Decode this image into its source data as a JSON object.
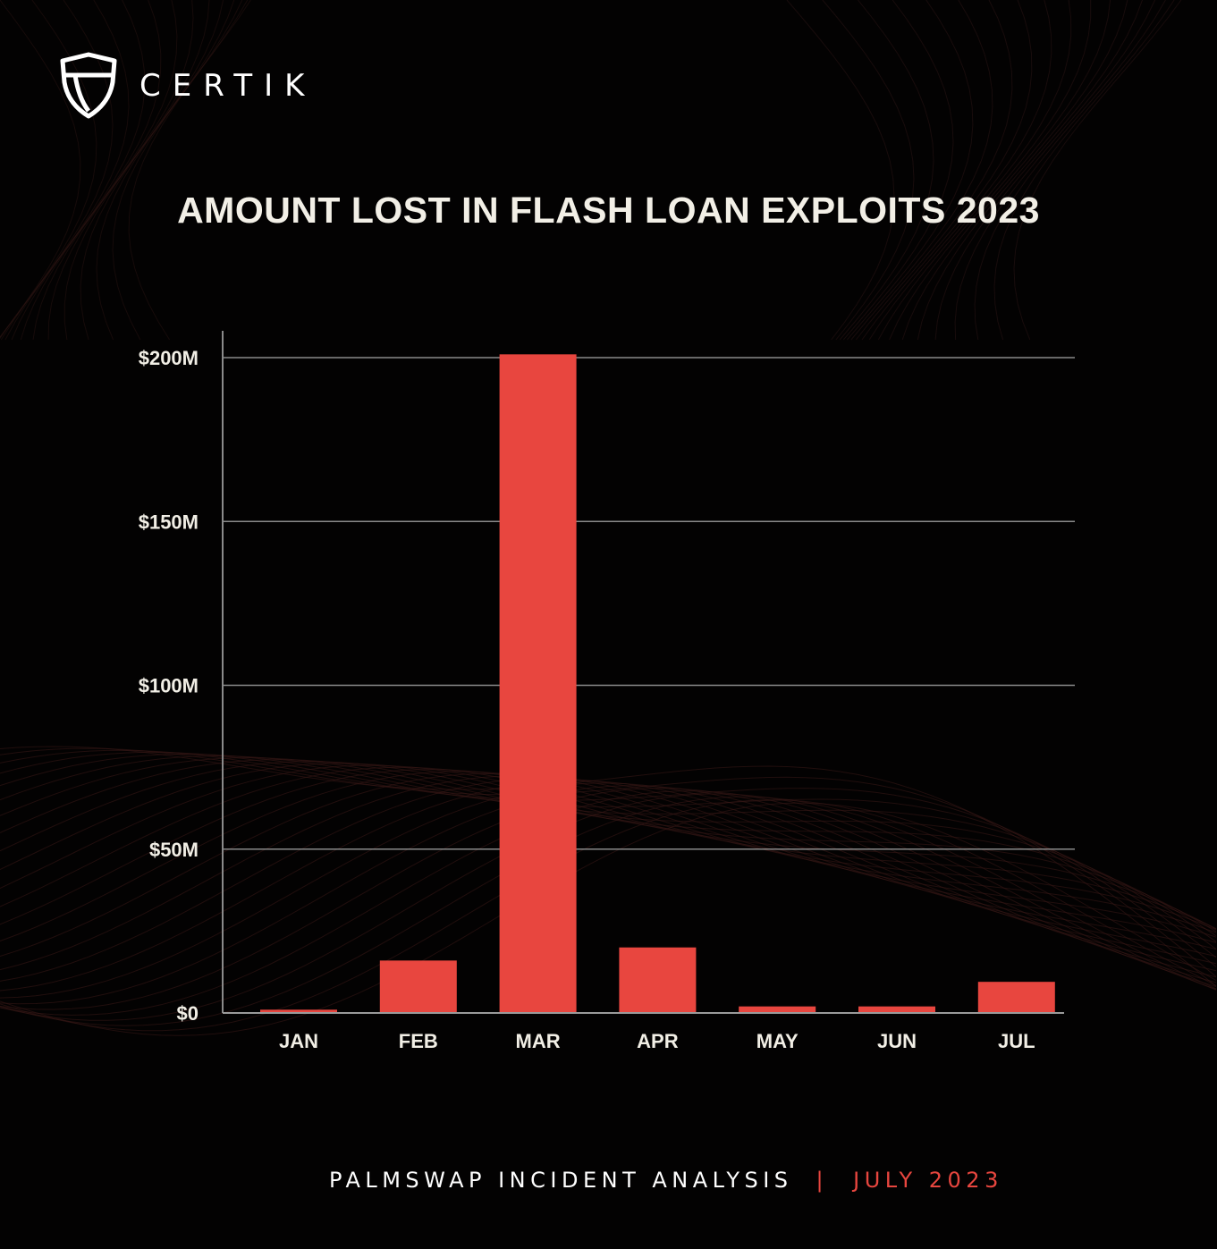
{
  "brand": {
    "name": "CERTIK",
    "logo_icon": "certik-shield-logo"
  },
  "colors": {
    "background": "#030202",
    "bar": "#e8463f",
    "accent": "#e8463f",
    "text": "#f2efe6",
    "grid": "#8a8a8a"
  },
  "footer": {
    "left": "PALMSWAP INCIDENT ANALYSIS",
    "separator": "|",
    "right": "JULY 2023"
  },
  "chart_data": {
    "type": "bar",
    "title": "AMOUNT LOST IN FLASH LOAN EXPLOITS 2023",
    "categories": [
      "JAN",
      "FEB",
      "MAR",
      "APR",
      "MAY",
      "JUN",
      "JUL"
    ],
    "values": [
      1,
      16,
      201,
      20,
      2,
      2,
      9.5
    ],
    "unit": "USD millions",
    "ylim": [
      0,
      200
    ],
    "yticks": [
      0,
      50,
      100,
      150,
      200
    ],
    "ytick_labels": [
      "$0",
      "$50M",
      "$100M",
      "$150M",
      "$200M"
    ],
    "grid": true,
    "legend": "none",
    "xlabel": "",
    "ylabel": ""
  }
}
